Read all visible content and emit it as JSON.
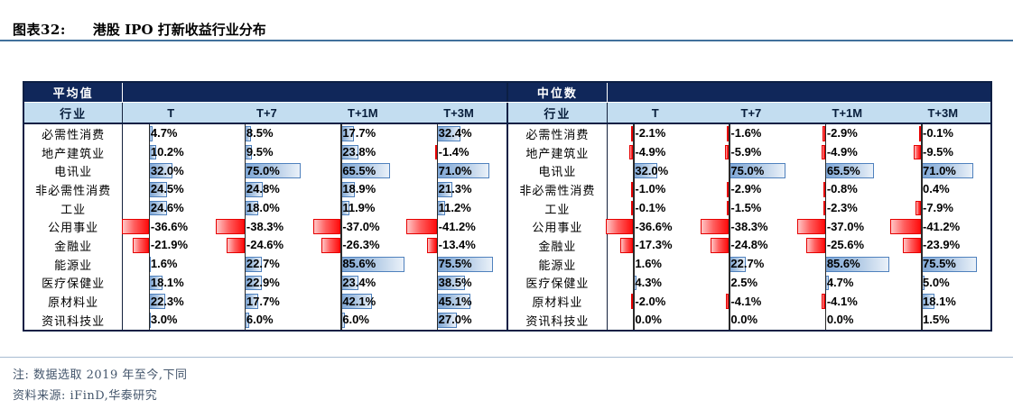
{
  "title": {
    "prefix": "图表32:",
    "text": "港股 IPO 打新收益行业分布"
  },
  "table_headers": {
    "industry": "行业",
    "periods": [
      "T",
      "T+7",
      "T+1M",
      "T+3M"
    ]
  },
  "chart_data": {
    "type": "table",
    "title": "港股 IPO 打新收益行业分布",
    "unit": "%",
    "columns": [
      "T",
      "T+7",
      "T+1M",
      "T+3M"
    ],
    "industries": [
      "必需性消费",
      "地产建筑业",
      "电讯业",
      "非必需性消费",
      "工业",
      "公用事业",
      "金融业",
      "能源业",
      "医疗保健业",
      "原材料业",
      "资讯科技业"
    ],
    "groups": [
      {
        "name": "平均值",
        "rows": [
          [
            4.7,
            8.5,
            17.7,
            32.4
          ],
          [
            10.2,
            9.5,
            23.8,
            -1.4
          ],
          [
            32.0,
            75.0,
            65.5,
            71.0
          ],
          [
            24.5,
            24.8,
            18.9,
            21.3
          ],
          [
            24.6,
            18.0,
            11.9,
            11.2
          ],
          [
            -36.6,
            -38.3,
            -37.0,
            -41.2
          ],
          [
            -21.9,
            -24.6,
            -26.3,
            -13.4
          ],
          [
            1.6,
            22.7,
            85.6,
            75.5
          ],
          [
            18.1,
            22.9,
            23.4,
            38.5
          ],
          [
            22.3,
            17.7,
            42.1,
            45.1
          ],
          [
            3.0,
            6.0,
            6.0,
            27.0
          ]
        ]
      },
      {
        "name": "中位数",
        "rows": [
          [
            -2.1,
            -1.6,
            -2.9,
            -0.1
          ],
          [
            -4.9,
            -5.9,
            -4.9,
            -9.5
          ],
          [
            32.0,
            75.0,
            65.5,
            71.0
          ],
          [
            -1.0,
            -2.9,
            -0.8,
            0.4
          ],
          [
            -0.1,
            -1.5,
            -2.3,
            -7.9
          ],
          [
            -36.6,
            -38.3,
            -37.0,
            -41.2
          ],
          [
            -17.3,
            -24.8,
            -25.6,
            -23.9
          ],
          [
            1.6,
            22.7,
            85.6,
            75.5
          ],
          [
            4.3,
            2.5,
            4.7,
            5.0
          ],
          [
            -2.0,
            -4.1,
            -4.1,
            18.1
          ],
          [
            0.0,
            0.0,
            0.0,
            1.5
          ]
        ]
      }
    ],
    "legend_position": "none",
    "grid": false
  },
  "notes": {
    "note": "注: 数据选取 2019 年至今,下同",
    "source": "资料来源: iFinD,华泰研究"
  },
  "colors": {
    "header_navy": "#10275a",
    "header_blue": "#c3ddf0",
    "positive_bar": "#4f81bd",
    "negative_bar": "#e60000",
    "title_rule": "#41719c",
    "note_rule": "#a7bcd2"
  }
}
